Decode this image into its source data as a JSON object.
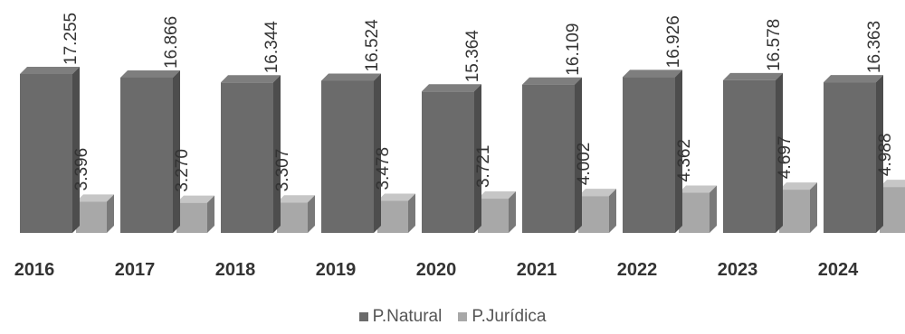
{
  "chart_data": {
    "type": "bar",
    "categories": [
      "2016",
      "2017",
      "2018",
      "2019",
      "2020",
      "2021",
      "2022",
      "2023",
      "2024"
    ],
    "series": [
      {
        "name": "P.Natural",
        "values": [
          "17.255",
          "16.866",
          "16.344",
          "16.524",
          "15.364",
          "16.109",
          "16.926",
          "16.578",
          "16.363"
        ],
        "color": "#6b6b6b"
      },
      {
        "name": "P.Jurídica",
        "values": [
          "3.396",
          "3.270",
          "3.307",
          "3.478",
          "3.721",
          "4.002",
          "4.362",
          "4.697",
          "4.988"
        ],
        "color": "#a8a8a8"
      }
    ],
    "legend_position": "bottom"
  }
}
